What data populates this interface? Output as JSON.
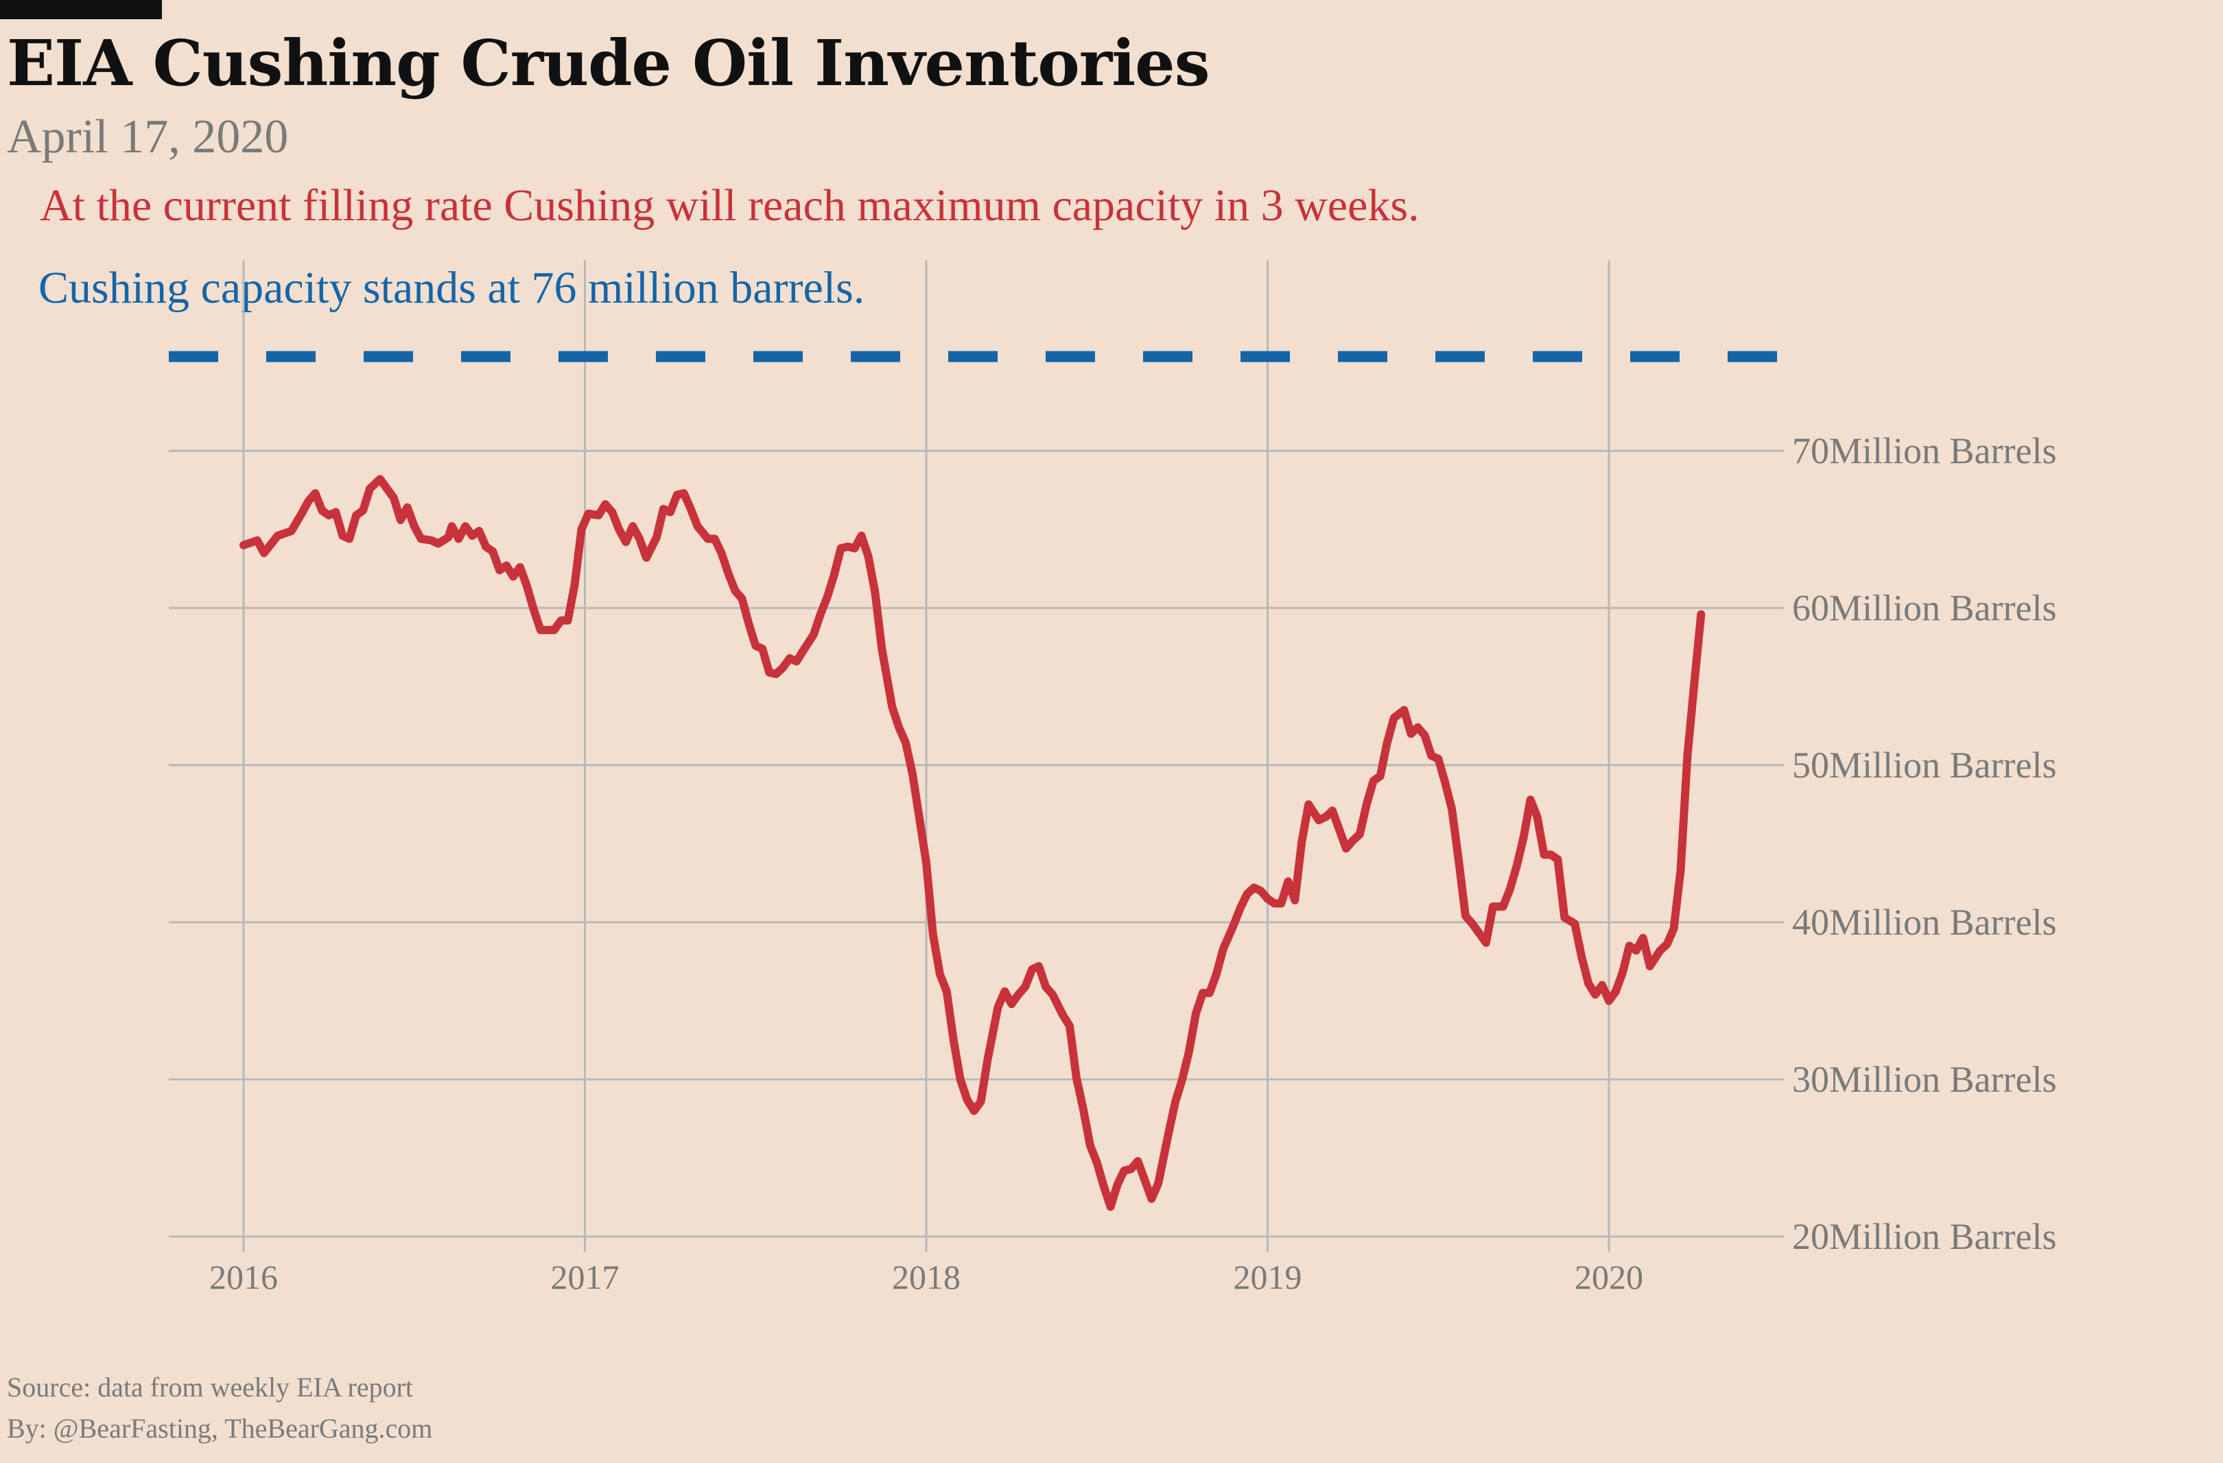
{
  "header": {
    "title": "EIA Cushing Crude Oil Inventories",
    "date": "April 17, 2020"
  },
  "annotations": {
    "fill_rate_note": "At the current filling rate Cushing will reach maximum capacity in 3 weeks.",
    "capacity_note": "Cushing capacity stands at 76 million barrels."
  },
  "footer": {
    "source": "Source: data from  weekly EIA report",
    "by": "By: @BearFasting, TheBearGang.com"
  },
  "colors": {
    "background": "#f2dfcf",
    "inventory_line": "#c8323a",
    "capacity_line": "#1465a8",
    "grid": "#b8b8b8",
    "tick_text": "#7a7a7a"
  },
  "chart_data": {
    "type": "line",
    "y_axis_side": "right",
    "ylim": [
      20,
      76
    ],
    "xlim": [
      2015.8,
      2020.55
    ],
    "grid": true,
    "y_ticks": [
      {
        "value": 70,
        "label": "70Million Barrels"
      },
      {
        "value": 60,
        "label": "60Million Barrels"
      },
      {
        "value": 50,
        "label": "50Million Barrels"
      },
      {
        "value": 40,
        "label": "40Million Barrels"
      },
      {
        "value": 30,
        "label": "30Million Barrels"
      },
      {
        "value": 20,
        "label": "20Million Barrels"
      }
    ],
    "x_ticks": [
      {
        "value": 2016,
        "label": "2016"
      },
      {
        "value": 2017,
        "label": "2017"
      },
      {
        "value": 2018,
        "label": "2018"
      },
      {
        "value": 2019,
        "label": "2019"
      },
      {
        "value": 2020,
        "label": "2020"
      }
    ],
    "reference_line": {
      "y": 76,
      "style": "dashed"
    },
    "series": [
      {
        "values": [
          [
            2016.0,
            64.0
          ],
          [
            2016.04,
            64.3
          ],
          [
            2016.06,
            63.5
          ],
          [
            2016.1,
            64.6
          ],
          [
            2016.14,
            64.9
          ],
          [
            2016.17,
            66.0
          ],
          [
            2016.19,
            66.8
          ],
          [
            2016.21,
            67.3
          ],
          [
            2016.23,
            66.2
          ],
          [
            2016.25,
            65.9
          ],
          [
            2016.27,
            66.1
          ],
          [
            2016.29,
            64.6
          ],
          [
            2016.31,
            64.4
          ],
          [
            2016.33,
            65.9
          ],
          [
            2016.35,
            66.2
          ],
          [
            2016.37,
            67.6
          ],
          [
            2016.4,
            68.2
          ],
          [
            2016.44,
            67.0
          ],
          [
            2016.46,
            65.6
          ],
          [
            2016.48,
            66.4
          ],
          [
            2016.5,
            65.2
          ],
          [
            2016.52,
            64.4
          ],
          [
            2016.55,
            64.3
          ],
          [
            2016.57,
            64.1
          ],
          [
            2016.6,
            64.5
          ],
          [
            2016.61,
            65.2
          ],
          [
            2016.63,
            64.4
          ],
          [
            2016.65,
            65.2
          ],
          [
            2016.67,
            64.6
          ],
          [
            2016.69,
            64.9
          ],
          [
            2016.71,
            63.9
          ],
          [
            2016.73,
            63.6
          ],
          [
            2016.75,
            62.4
          ],
          [
            2016.77,
            62.7
          ],
          [
            2016.79,
            62.0
          ],
          [
            2016.81,
            62.6
          ],
          [
            2016.83,
            61.4
          ],
          [
            2016.85,
            59.9
          ],
          [
            2016.87,
            58.6
          ],
          [
            2016.91,
            58.6
          ],
          [
            2016.93,
            59.2
          ],
          [
            2016.95,
            59.2
          ],
          [
            2016.97,
            61.5
          ],
          [
            2016.99,
            65.0
          ],
          [
            2017.01,
            66.0
          ],
          [
            2017.04,
            65.9
          ],
          [
            2017.06,
            66.6
          ],
          [
            2017.08,
            66.1
          ],
          [
            2017.1,
            65.0
          ],
          [
            2017.12,
            64.2
          ],
          [
            2017.14,
            65.2
          ],
          [
            2017.16,
            64.4
          ],
          [
            2017.18,
            63.2
          ],
          [
            2017.21,
            64.5
          ],
          [
            2017.23,
            66.3
          ],
          [
            2017.25,
            66.1
          ],
          [
            2017.27,
            67.2
          ],
          [
            2017.29,
            67.3
          ],
          [
            2017.31,
            66.3
          ],
          [
            2017.33,
            65.2
          ],
          [
            2017.36,
            64.4
          ],
          [
            2017.38,
            64.4
          ],
          [
            2017.4,
            63.5
          ],
          [
            2017.42,
            62.2
          ],
          [
            2017.44,
            61.1
          ],
          [
            2017.46,
            60.6
          ],
          [
            2017.48,
            59.0
          ],
          [
            2017.5,
            57.6
          ],
          [
            2017.52,
            57.4
          ],
          [
            2017.54,
            55.9
          ],
          [
            2017.56,
            55.8
          ],
          [
            2017.58,
            56.2
          ],
          [
            2017.6,
            56.8
          ],
          [
            2017.62,
            56.6
          ],
          [
            2017.64,
            57.3
          ],
          [
            2017.67,
            58.3
          ],
          [
            2017.69,
            59.6
          ],
          [
            2017.71,
            60.7
          ],
          [
            2017.73,
            62.1
          ],
          [
            2017.75,
            63.8
          ],
          [
            2017.77,
            63.9
          ],
          [
            2017.79,
            63.8
          ],
          [
            2017.81,
            64.6
          ],
          [
            2017.83,
            63.3
          ],
          [
            2017.85,
            61.0
          ],
          [
            2017.87,
            57.4
          ],
          [
            2017.9,
            53.7
          ],
          [
            2017.92,
            52.4
          ],
          [
            2017.94,
            51.4
          ],
          [
            2017.96,
            49.4
          ],
          [
            2017.98,
            46.6
          ],
          [
            2018.0,
            43.8
          ],
          [
            2018.02,
            39.2
          ],
          [
            2018.04,
            36.7
          ],
          [
            2018.06,
            35.6
          ],
          [
            2018.08,
            32.5
          ],
          [
            2018.1,
            30.0
          ],
          [
            2018.12,
            28.7
          ],
          [
            2018.14,
            28.0
          ],
          [
            2018.16,
            28.6
          ],
          [
            2018.18,
            31.3
          ],
          [
            2018.21,
            34.6
          ],
          [
            2018.23,
            35.6
          ],
          [
            2018.25,
            34.8
          ],
          [
            2018.27,
            35.4
          ],
          [
            2018.29,
            35.9
          ],
          [
            2018.31,
            37.0
          ],
          [
            2018.33,
            37.2
          ],
          [
            2018.35,
            35.9
          ],
          [
            2018.37,
            35.4
          ],
          [
            2018.4,
            34.1
          ],
          [
            2018.42,
            33.4
          ],
          [
            2018.44,
            30.1
          ],
          [
            2018.46,
            28.1
          ],
          [
            2018.48,
            25.8
          ],
          [
            2018.5,
            24.7
          ],
          [
            2018.52,
            23.2
          ],
          [
            2018.54,
            21.9
          ],
          [
            2018.56,
            23.3
          ],
          [
            2018.58,
            24.2
          ],
          [
            2018.6,
            24.3
          ],
          [
            2018.62,
            24.8
          ],
          [
            2018.64,
            23.6
          ],
          [
            2018.66,
            22.4
          ],
          [
            2018.68,
            23.4
          ],
          [
            2018.71,
            26.6
          ],
          [
            2018.73,
            28.6
          ],
          [
            2018.75,
            30.0
          ],
          [
            2018.77,
            31.8
          ],
          [
            2018.79,
            34.2
          ],
          [
            2018.81,
            35.5
          ],
          [
            2018.83,
            35.5
          ],
          [
            2018.85,
            36.7
          ],
          [
            2018.87,
            38.3
          ],
          [
            2018.9,
            39.8
          ],
          [
            2018.92,
            40.9
          ],
          [
            2018.94,
            41.8
          ],
          [
            2018.96,
            42.2
          ],
          [
            2018.98,
            42.0
          ],
          [
            2019.0,
            41.5
          ],
          [
            2019.02,
            41.2
          ],
          [
            2019.04,
            41.2
          ],
          [
            2019.06,
            42.6
          ],
          [
            2019.08,
            41.4
          ],
          [
            2019.1,
            45.1
          ],
          [
            2019.12,
            47.5
          ],
          [
            2019.15,
            46.5
          ],
          [
            2019.17,
            46.7
          ],
          [
            2019.19,
            47.1
          ],
          [
            2019.21,
            45.9
          ],
          [
            2019.23,
            44.7
          ],
          [
            2019.25,
            45.2
          ],
          [
            2019.27,
            45.6
          ],
          [
            2019.29,
            47.5
          ],
          [
            2019.31,
            49.0
          ],
          [
            2019.33,
            49.3
          ],
          [
            2019.35,
            51.4
          ],
          [
            2019.37,
            53.0
          ],
          [
            2019.4,
            53.5
          ],
          [
            2019.42,
            52.0
          ],
          [
            2019.44,
            52.4
          ],
          [
            2019.46,
            51.9
          ],
          [
            2019.48,
            50.6
          ],
          [
            2019.5,
            50.4
          ],
          [
            2019.52,
            48.9
          ],
          [
            2019.54,
            47.2
          ],
          [
            2019.56,
            43.9
          ],
          [
            2019.58,
            40.4
          ],
          [
            2019.6,
            39.9
          ],
          [
            2019.62,
            39.3
          ],
          [
            2019.64,
            38.7
          ],
          [
            2019.66,
            41.0
          ],
          [
            2019.69,
            41.0
          ],
          [
            2019.71,
            42.1
          ],
          [
            2019.73,
            43.6
          ],
          [
            2019.75,
            45.4
          ],
          [
            2019.77,
            47.8
          ],
          [
            2019.79,
            46.7
          ],
          [
            2019.81,
            44.3
          ],
          [
            2019.83,
            44.3
          ],
          [
            2019.85,
            44.0
          ],
          [
            2019.87,
            40.3
          ],
          [
            2019.9,
            39.9
          ],
          [
            2019.92,
            37.8
          ],
          [
            2019.94,
            36.1
          ],
          [
            2019.96,
            35.4
          ],
          [
            2019.98,
            36.0
          ],
          [
            2020.0,
            35.0
          ],
          [
            2020.02,
            35.6
          ],
          [
            2020.04,
            36.8
          ],
          [
            2020.06,
            38.5
          ],
          [
            2020.08,
            38.2
          ],
          [
            2020.1,
            39.0
          ],
          [
            2020.12,
            37.2
          ],
          [
            2020.15,
            38.2
          ],
          [
            2020.17,
            38.6
          ],
          [
            2020.19,
            39.6
          ],
          [
            2020.21,
            43.3
          ],
          [
            2020.23,
            50.6
          ],
          [
            2020.25,
            55.2
          ],
          [
            2020.27,
            59.6
          ]
        ]
      }
    ]
  }
}
